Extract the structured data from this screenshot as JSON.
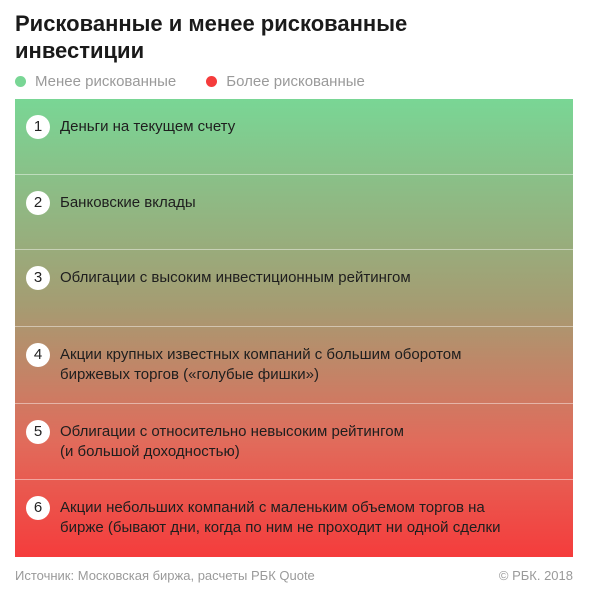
{
  "title": "Рискованные и менее рискованные инвестиции",
  "legend": [
    {
      "label": "Менее рискованные",
      "color": "#79d695"
    },
    {
      "label": "Более рискованные",
      "color": "#f53c3c"
    }
  ],
  "items": [
    {
      "num": "1",
      "lines": [
        "Деньги на текущем счету"
      ]
    },
    {
      "num": "2",
      "lines": [
        "Банковские вклады"
      ]
    },
    {
      "num": "3",
      "lines": [
        "Облигации с высоким инвестиционным рейтингом"
      ]
    },
    {
      "num": "4",
      "lines": [
        "Акции крупных известных компаний с большим оборотом",
        "биржевых торгов («голубые фишки»)"
      ]
    },
    {
      "num": "5",
      "lines": [
        "Облигации с относительно невысоким рейтингом",
        "(и большой доходностью)"
      ]
    },
    {
      "num": "6",
      "lines": [
        "Акции небольших компаний с маленьким объемом торгов на",
        "бирже (бывают дни, когда по ним не проходит ни одной сделки"
      ]
    }
  ],
  "footer": {
    "source": "Источник: Московская биржа, расчеты РБК Quote",
    "copyright": "© РБК. 2018"
  }
}
